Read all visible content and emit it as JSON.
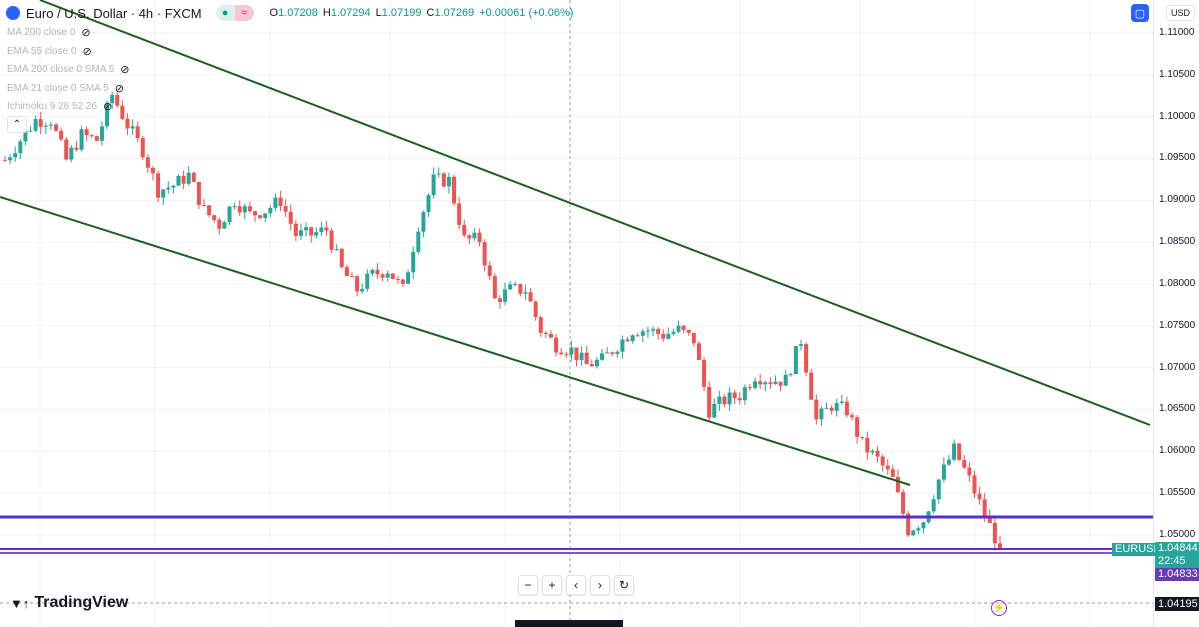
{
  "header": {
    "symbol": "Euro / U.S. Dollar · 4h · FXCM",
    "market_open": "●",
    "status": "≈",
    "ohlc": {
      "o_label": "O",
      "o": "1.07208",
      "h_label": "H",
      "h": "1.07294",
      "l_label": "L",
      "l": "1.07199",
      "c_label": "C",
      "c": "1.07269",
      "change": "+0.00061 (+0.06%)"
    }
  },
  "indicators": [
    {
      "label": "MA 200 close 0"
    },
    {
      "label": "EMA 55 close 0"
    },
    {
      "label": "EMA 200 close 0 SMA 5"
    },
    {
      "label": "EMA 21 close 0 SMA 5"
    },
    {
      "label": "Ichimoku 9 26 52 26"
    }
  ],
  "icons": {
    "eye": "eye-off-icon",
    "collapse": "chevron-up-icon",
    "zoom_out": "−",
    "zoom_in": "+",
    "left": "‹",
    "right": "›",
    "reset": "↻",
    "bolt": "⚡"
  },
  "axis": {
    "currency": "USD",
    "ticks": [
      "1.11000",
      "1.10500",
      "1.10000",
      "1.09500",
      "1.09000",
      "1.08500",
      "1.08000",
      "1.07500",
      "1.07000",
      "1.06500",
      "1.06000",
      "1.05500",
      "1.05000"
    ]
  },
  "labels": {
    "symbol": "EURUSD",
    "last_price": "1.04844",
    "countdown": "22:45",
    "line_price": "1.04833",
    "crosshair_price": "1.04195"
  },
  "brand": "TradingView",
  "colors": {
    "up": "#26a69a",
    "down": "#ef5350",
    "trend": "#1b5e20",
    "level": "#5b2fc9",
    "accent": "#2962ff"
  },
  "chart_data": {
    "type": "candlestick",
    "symbol": "EURUSD",
    "interval": "4h",
    "ylim": [
      1.04,
      1.1133
    ],
    "closes": [
      1.0948,
      1.0972,
      1.0996,
      1.0996,
      1.0948,
      1.0978,
      1.0972,
      1.1026,
      1.099,
      1.096,
      1.0912,
      1.0918,
      1.093,
      1.0888,
      1.0871,
      1.09,
      1.0883,
      1.0888,
      1.09,
      1.0859,
      1.0859,
      1.0865,
      1.0817,
      1.0793,
      1.0811,
      1.0817,
      1.0793,
      1.0871,
      1.0924,
      1.0924,
      1.0853,
      1.0853,
      1.0781,
      1.0793,
      1.0793,
      1.0745,
      1.0727,
      1.0721,
      1.0703,
      1.0709,
      1.0727,
      1.0745,
      1.0745,
      1.0739,
      1.0745,
      1.0733,
      1.0649,
      1.0661,
      1.0667,
      1.0691,
      1.0685,
      1.0685,
      1.0733,
      1.0637,
      1.0655,
      1.0649,
      1.0608,
      1.059,
      1.0566,
      1.0506,
      1.0518,
      1.0566,
      1.0602,
      1.0566,
      1.0524,
      1.0484
    ],
    "horizontal_levels": [
      1.0521,
      1.0483
    ]
  }
}
